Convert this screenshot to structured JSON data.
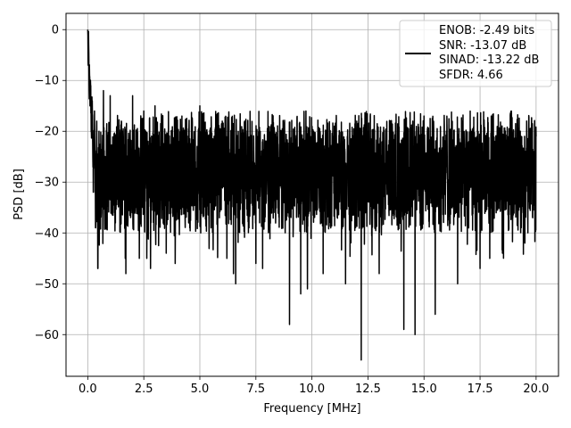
{
  "chart_data": {
    "type": "line",
    "xlabel": "Frequency [MHz]",
    "ylabel": "PSD [dB]",
    "xlim": [
      -0.97,
      21.0
    ],
    "ylim": [
      -68.2,
      3.2
    ],
    "xticks": [
      0.0,
      2.5,
      5.0,
      7.5,
      10.0,
      12.5,
      15.0,
      17.5,
      20.0
    ],
    "xtick_labels": [
      "0.0",
      "2.5",
      "5.0",
      "7.5",
      "10.0",
      "12.5",
      "15.0",
      "17.5",
      "20.0"
    ],
    "yticks": [
      0,
      -10,
      -20,
      -30,
      -40,
      -50,
      -60
    ],
    "ytick_labels": [
      "0",
      "−10",
      "−20",
      "−30",
      "−40",
      "−50",
      "−60"
    ],
    "grid": true,
    "legend_position": "top-right",
    "legend_lines": [
      "ENOB: -2.49 bits",
      "SNR: -13.07 dB",
      "SINAD: -13.22 dB",
      "SFDR: 4.66"
    ],
    "series": [
      {
        "color": "#000000",
        "approximate_noise_floor_db": -28,
        "points": [
          [
            0.0,
            0.0
          ],
          [
            0.02,
            -7
          ],
          [
            0.04,
            -3
          ],
          [
            0.06,
            -12
          ],
          [
            0.08,
            -9
          ],
          [
            0.1,
            -15
          ],
          [
            0.13,
            -11
          ],
          [
            0.16,
            -20
          ],
          [
            0.2,
            -14
          ],
          [
            0.25,
            -32
          ],
          [
            0.3,
            -16
          ],
          [
            0.35,
            -39
          ],
          [
            0.4,
            -18
          ],
          [
            0.45,
            -47
          ],
          [
            0.5,
            -20
          ],
          [
            0.6,
            -36
          ],
          [
            0.7,
            -12
          ],
          [
            0.8,
            -35
          ],
          [
            1.0,
            -13
          ],
          [
            1.2,
            -36
          ],
          [
            1.5,
            -18
          ],
          [
            1.7,
            -48
          ],
          [
            2.0,
            -13
          ],
          [
            2.3,
            -45
          ],
          [
            2.5,
            -16
          ],
          [
            2.8,
            -47
          ],
          [
            3.0,
            -15
          ],
          [
            3.5,
            -44
          ],
          [
            3.9,
            -46
          ],
          [
            4.2,
            -17
          ],
          [
            4.5,
            -38
          ],
          [
            5.0,
            -15
          ],
          [
            5.5,
            -39
          ],
          [
            6.0,
            -18
          ],
          [
            6.5,
            -48
          ],
          [
            6.6,
            -50
          ],
          [
            7.0,
            -18
          ],
          [
            7.5,
            -46
          ],
          [
            7.8,
            -47
          ],
          [
            8.0,
            -22
          ],
          [
            8.5,
            -28
          ],
          [
            8.8,
            -37
          ],
          [
            9.0,
            -58
          ],
          [
            9.2,
            -20
          ],
          [
            9.5,
            -52
          ],
          [
            9.8,
            -51
          ],
          [
            10.0,
            -19
          ],
          [
            10.5,
            -48
          ],
          [
            11.0,
            -19
          ],
          [
            11.5,
            -50
          ],
          [
            12.0,
            -18
          ],
          [
            12.2,
            -65
          ],
          [
            12.5,
            -20
          ],
          [
            13.0,
            -48
          ],
          [
            13.5,
            -20
          ],
          [
            14.1,
            -59
          ],
          [
            14.5,
            -18
          ],
          [
            14.6,
            -60
          ],
          [
            15.0,
            -17
          ],
          [
            15.5,
            -56
          ],
          [
            16.0,
            -20
          ],
          [
            16.5,
            -50
          ],
          [
            17.0,
            -22
          ],
          [
            17.5,
            -47
          ],
          [
            18.0,
            -17
          ],
          [
            18.5,
            -44
          ],
          [
            19.0,
            -20
          ],
          [
            19.5,
            -42
          ],
          [
            20.0,
            -21
          ]
        ]
      }
    ]
  }
}
